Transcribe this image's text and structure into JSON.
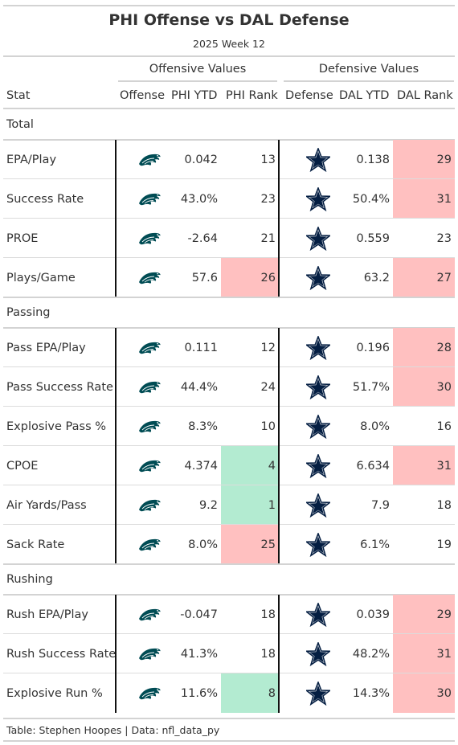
{
  "title": "PHI Offense vs DAL Defense",
  "subtitle": "2025 Week 12",
  "spanners": {
    "offense": "Offensive Values",
    "defense": "Defensive Values"
  },
  "columns": {
    "stat": "Stat",
    "offense": "Offense",
    "phi_ytd": "PHI YTD",
    "phi_rank": "PHI Rank",
    "defense": "Defense",
    "dal_ytd": "DAL YTD",
    "dal_rank": "DAL Rank"
  },
  "icons": {
    "offense": "eagles-logo-icon",
    "defense": "cowboys-star-icon"
  },
  "colors": {
    "good_rank": "#b3ebd1",
    "bad_rank": "#ffc0c0",
    "eagles": "#004c54",
    "cowboys": "#041e42"
  },
  "source": "Table: Stephen Hoopes | Data: nfl_data_py",
  "chart_data": {
    "type": "table",
    "title": "PHI Offense vs DAL Defense",
    "subtitle": "2025 Week 12",
    "column_headers": [
      "Stat",
      "Offense",
      "PHI YTD",
      "PHI Rank",
      "Defense",
      "DAL YTD",
      "DAL Rank"
    ],
    "groups": [
      {
        "label": "Total",
        "rows": [
          {
            "stat": "EPA/Play",
            "phi_ytd": "0.042",
            "phi_rank": "13",
            "phi_highlight": "",
            "dal_ytd": "0.138",
            "dal_rank": "29",
            "dal_highlight": "bad"
          },
          {
            "stat": "Success Rate",
            "phi_ytd": "43.0%",
            "phi_rank": "23",
            "phi_highlight": "",
            "dal_ytd": "50.4%",
            "dal_rank": "31",
            "dal_highlight": "bad"
          },
          {
            "stat": "PROE",
            "phi_ytd": "-2.64",
            "phi_rank": "21",
            "phi_highlight": "",
            "dal_ytd": "0.559",
            "dal_rank": "23",
            "dal_highlight": ""
          },
          {
            "stat": "Plays/Game",
            "phi_ytd": "57.6",
            "phi_rank": "26",
            "phi_highlight": "bad",
            "dal_ytd": "63.2",
            "dal_rank": "27",
            "dal_highlight": "bad"
          }
        ]
      },
      {
        "label": "Passing",
        "rows": [
          {
            "stat": "Pass EPA/Play",
            "phi_ytd": "0.111",
            "phi_rank": "12",
            "phi_highlight": "",
            "dal_ytd": "0.196",
            "dal_rank": "28",
            "dal_highlight": "bad"
          },
          {
            "stat": "Pass Success Rate",
            "phi_ytd": "44.4%",
            "phi_rank": "24",
            "phi_highlight": "",
            "dal_ytd": "51.7%",
            "dal_rank": "30",
            "dal_highlight": "bad"
          },
          {
            "stat": "Explosive Pass %",
            "phi_ytd": "8.3%",
            "phi_rank": "10",
            "phi_highlight": "",
            "dal_ytd": "8.0%",
            "dal_rank": "16",
            "dal_highlight": ""
          },
          {
            "stat": "CPOE",
            "phi_ytd": "4.374",
            "phi_rank": "4",
            "phi_highlight": "good",
            "dal_ytd": "6.634",
            "dal_rank": "31",
            "dal_highlight": "bad"
          },
          {
            "stat": "Air Yards/Pass",
            "phi_ytd": "9.2",
            "phi_rank": "1",
            "phi_highlight": "good",
            "dal_ytd": "7.9",
            "dal_rank": "18",
            "dal_highlight": ""
          },
          {
            "stat": "Sack Rate",
            "phi_ytd": "8.0%",
            "phi_rank": "25",
            "phi_highlight": "bad",
            "dal_ytd": "6.1%",
            "dal_rank": "19",
            "dal_highlight": ""
          }
        ]
      },
      {
        "label": "Rushing",
        "rows": [
          {
            "stat": "Rush EPA/Play",
            "phi_ytd": "-0.047",
            "phi_rank": "18",
            "phi_highlight": "",
            "dal_ytd": "0.039",
            "dal_rank": "29",
            "dal_highlight": "bad"
          },
          {
            "stat": "Rush Success Rate",
            "phi_ytd": "41.3%",
            "phi_rank": "18",
            "phi_highlight": "",
            "dal_ytd": "48.2%",
            "dal_rank": "31",
            "dal_highlight": "bad"
          },
          {
            "stat": "Explosive Run %",
            "phi_ytd": "11.6%",
            "phi_rank": "8",
            "phi_highlight": "good",
            "dal_ytd": "14.3%",
            "dal_rank": "30",
            "dal_highlight": "bad"
          }
        ]
      }
    ]
  }
}
